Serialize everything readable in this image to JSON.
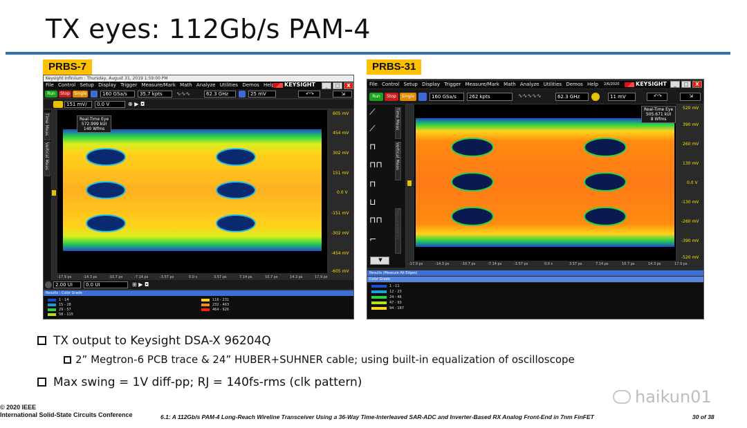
{
  "slide": {
    "title": "TX eyes:  112Gb/s PAM-4"
  },
  "left_panel": {
    "label": "PRBS-7",
    "titlebar": "Keysight Infiniium : Thursday, August 31, 2019 1:59:00 PM",
    "menu": [
      "File",
      "Control",
      "Setup",
      "Display",
      "Trigger",
      "Measure/Mark",
      "Math",
      "Analyze",
      "Utilities",
      "Demos",
      "Help"
    ],
    "brand": "KEYSIGHT",
    "run_label": "Run",
    "stop_label": "Stop",
    "single_label": "Single",
    "sample_rate": "160 GSa/s",
    "memory_depth": "35.7 kpts",
    "bandwidth": "62.3 GHz",
    "trigger_level": "25 mV",
    "channel_scale": "151 mV/",
    "channel_offset": "0.0 V",
    "side_tabs": [
      "Time Meas",
      "Vertical Meas"
    ],
    "eye_info": [
      "Real-Time Eye",
      "572.999 kUI",
      "140 Wfms"
    ],
    "y_labels": [
      "605 mV",
      "454 mV",
      "302 mV",
      "151 mV",
      "0.0 V",
      "-151 mV",
      "-302 mV",
      "-454 mV",
      "-605 mV"
    ],
    "x_labels": [
      "-17.9 ps",
      "-14.3 ps",
      "-10.7 ps",
      "-7.14 ps",
      "-3.57 ps",
      "0.0 s",
      "3.57 ps",
      "7.14 ps",
      "10.7 ps",
      "14.3 ps",
      "17.9 ps"
    ],
    "timebase": "2.00 UI",
    "time_offset": "0.0 UI",
    "results_title": "Results : Color Grade",
    "legend_left": [
      "1 - 14",
      "15 - 28",
      "29 - 57",
      "58 - 115"
    ],
    "legend_right": [
      "116 - 231",
      "232 - 463",
      "464 - 926"
    ],
    "legend_colors_left": [
      "#1a4fd0",
      "#1aa0e0",
      "#2ad24a",
      "#b8e020"
    ],
    "legend_colors_right": [
      "#ffd21a",
      "#ff8a10",
      "#ff2010"
    ]
  },
  "right_panel": {
    "label": "PRBS-31",
    "date": "2/6/2020",
    "menu": [
      "File",
      "Control",
      "Setup",
      "Display",
      "Trigger",
      "Measure/Mark",
      "Math",
      "Analyze",
      "Utilities",
      "Demos",
      "Help"
    ],
    "brand": "KEYSIGHT",
    "run_label": "Run",
    "stop_label": "Stop",
    "single_label": "Single",
    "sample_rate": "160 GSa/s",
    "memory_depth": "262 kpts",
    "bandwidth": "62.3 GHz",
    "trigger_level": "11 mV",
    "side_tabs": [
      "Time Meas",
      "Vertical Meas",
      "Measurements"
    ],
    "eye_info": [
      "Real-Time Eye",
      "505.671 kUI",
      "8 Wfms"
    ],
    "y_labels": [
      "520 mV",
      "390 mV",
      "260 mV",
      "130 mV",
      "0.0 V",
      "-130 mV",
      "-260 mV",
      "-390 mV",
      "-520 mV"
    ],
    "x_labels": [
      "-17.9 ps",
      "-14.3 ps",
      "-10.7 ps",
      "-7.14 ps",
      "-3.57 ps",
      "0.0 s",
      "3.57 ps",
      "7.14 ps",
      "10.7 ps",
      "14.3 ps",
      "17.9 ps"
    ],
    "results_title": "Results  (Measure All Edges)",
    "color_grade_title": "Color Grade",
    "legend": [
      "1 - 11",
      "12 - 23",
      "24 - 46",
      "47 - 93",
      "94 - 187"
    ],
    "legend_colors": [
      "#1a4fd0",
      "#1aa0e0",
      "#2ad24a",
      "#b8e020",
      "#ffd21a"
    ]
  },
  "bullets": {
    "b1": "TX output to Keysight DSA-X 96204Q",
    "b2": "2” Megtron-6 PCB trace & 24” HUBER+SUHNER cable;  using built-in equalization of oscilloscope",
    "b3": "Max swing = 1V diff-pp;  RJ = 140fs-rms (clk pattern)"
  },
  "footer": {
    "copyright": "© 2020 IEEE",
    "conference": "International Solid-State Circuits Conference",
    "paper": "6.1: A 112Gb/s PAM-4 Long-Reach Wireline Transceiver Using a 36-Way Time-Interleaved SAR-ADC and Inverter-Based RX Analog Front-End in 7nm FinFET",
    "page": "30 of 38"
  },
  "watermark": "haikun01"
}
